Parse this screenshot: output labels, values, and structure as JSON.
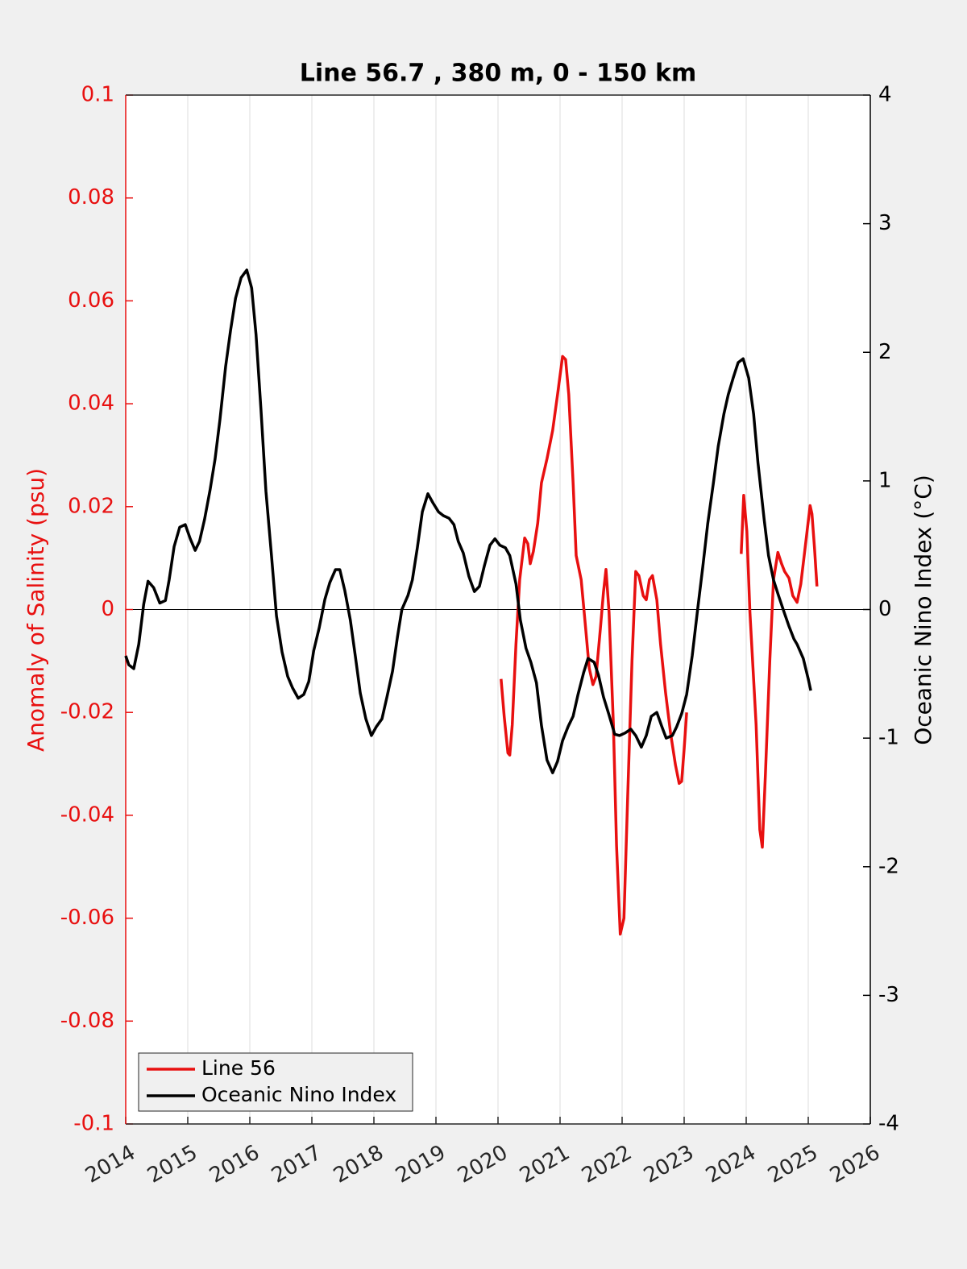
{
  "chart_data": {
    "type": "line",
    "title": "Line 56.7 , 380 m, 0 - 150 km",
    "y_label": "Anomaly of Salinity (psu)",
    "y2_label": "Oceanic Nino Index (°C)",
    "xlim": [
      2014,
      2026
    ],
    "xticks": [
      2014,
      2015,
      2016,
      2017,
      2018,
      2019,
      2020,
      2021,
      2022,
      2023,
      2024,
      2025,
      2026
    ],
    "ylim": [
      -0.1,
      0.1
    ],
    "yticks": [
      -0.1,
      -0.08,
      -0.06,
      -0.04,
      -0.02,
      0,
      0.02,
      0.04,
      0.06,
      0.08,
      0.1
    ],
    "y2lim": [
      -4,
      4
    ],
    "y2ticks": [
      -4,
      -3,
      -2,
      -1,
      0,
      1,
      2,
      3,
      4
    ],
    "grid": "x",
    "reference_line": 0,
    "legend": "lower left",
    "series": [
      {
        "name": "Line 56",
        "color": "#e81010",
        "axis": "y",
        "x": [
          2020.05,
          2020.1,
          2020.16,
          2020.19,
          2020.23,
          2020.29,
          2020.35,
          2020.43,
          2020.48,
          2020.52,
          2020.57,
          2020.64,
          2020.7,
          2020.79,
          2020.88,
          2020.96,
          2021.04,
          2021.09,
          2021.14,
          2021.21,
          2021.26,
          2021.34,
          2021.4,
          2021.47,
          2021.53,
          2021.58,
          2021.65,
          2021.7,
          2021.74,
          2021.79,
          2021.86,
          2021.91,
          2021.97,
          2022.03,
          2022.09,
          2022.16,
          2022.22,
          2022.27,
          2022.34,
          2022.39,
          2022.44,
          2022.49,
          2022.56,
          2022.62,
          2022.7,
          2022.78,
          2022.86,
          2022.92,
          2022.96,
          2023.0,
          2023.04,
          null,
          2023.92,
          2023.96,
          2024.01,
          2024.06,
          2024.16,
          2024.22,
          2024.26,
          2024.31,
          2024.38,
          2024.44,
          2024.51,
          2024.57,
          2024.62,
          2024.69,
          2024.75,
          2024.82,
          2024.88,
          2024.95,
          2025.03,
          2025.06,
          2025.1,
          2025.14
        ],
        "values": [
          -0.0135,
          -0.0208,
          -0.0279,
          -0.0283,
          -0.0224,
          -0.0067,
          0.0058,
          0.0139,
          0.0128,
          0.0089,
          0.0113,
          0.0168,
          0.0246,
          0.0293,
          0.0348,
          0.0418,
          0.0492,
          0.0486,
          0.0418,
          0.0246,
          0.0105,
          0.0058,
          -0.002,
          -0.0114,
          -0.0146,
          -0.013,
          -0.0036,
          0.0034,
          0.0078,
          -0.0005,
          -0.0224,
          -0.0459,
          -0.0631,
          -0.06,
          -0.0365,
          -0.0099,
          0.0074,
          0.0066,
          0.0027,
          0.0019,
          0.0058,
          0.0066,
          0.0019,
          -0.0067,
          -0.0161,
          -0.024,
          -0.0302,
          -0.0338,
          -0.0334,
          -0.0271,
          -0.02,
          null,
          0.0108,
          0.0222,
          0.0152,
          -0.0005,
          -0.0224,
          -0.0428,
          -0.0462,
          -0.0318,
          -0.0099,
          0.0058,
          0.0111,
          0.0089,
          0.0074,
          0.0061,
          0.0027,
          0.0014,
          0.005,
          0.0121,
          0.0202,
          0.0186,
          0.0121,
          0.0045
        ]
      },
      {
        "name": "Oceanic Nino Index",
        "color": "#000000",
        "axis": "y2",
        "x": [
          2014.0,
          2014.05,
          2014.13,
          2014.21,
          2014.29,
          2014.36,
          2014.45,
          2014.55,
          2014.64,
          2014.7,
          2014.78,
          2014.87,
          2014.96,
          2015.04,
          2015.12,
          2015.19,
          2015.27,
          2015.36,
          2015.44,
          2015.52,
          2015.61,
          2015.69,
          2015.77,
          2015.86,
          2015.95,
          2016.03,
          2016.1,
          2016.18,
          2016.26,
          2016.35,
          2016.43,
          2016.52,
          2016.61,
          2016.69,
          2016.78,
          2016.87,
          2016.95,
          2017.03,
          2017.12,
          2017.21,
          2017.29,
          2017.38,
          2017.45,
          2017.53,
          2017.62,
          2017.7,
          2017.78,
          2017.87,
          2017.96,
          2018.04,
          2018.13,
          2018.21,
          2018.3,
          2018.38,
          2018.45,
          2018.55,
          2018.62,
          2018.7,
          2018.78,
          2018.87,
          2018.95,
          2019.04,
          2019.12,
          2019.21,
          2019.29,
          2019.36,
          2019.44,
          2019.53,
          2019.62,
          2019.7,
          2019.78,
          2019.87,
          2019.95,
          2020.03,
          2020.12,
          2020.19,
          2020.29,
          2020.36,
          2020.45,
          2020.53,
          2020.62,
          2020.7,
          2020.79,
          2020.88,
          2020.96,
          2021.04,
          2021.13,
          2021.21,
          2021.29,
          2021.38,
          2021.45,
          2021.55,
          2021.62,
          2021.7,
          2021.79,
          2021.88,
          2021.96,
          2022.05,
          2022.14,
          2022.22,
          2022.31,
          2022.39,
          2022.47,
          2022.56,
          2022.64,
          2022.71,
          2022.81,
          2022.88,
          2022.96,
          2023.04,
          2023.13,
          2023.22,
          2023.3,
          2023.38,
          2023.47,
          2023.55,
          2023.64,
          2023.71,
          2023.79,
          2023.87,
          2023.95,
          2024.04,
          2024.12,
          2024.19,
          2024.29,
          2024.36,
          2024.44,
          2024.52,
          2024.61,
          2024.69,
          2024.77,
          2024.82,
          2024.92,
          2025.0,
          2025.04
        ],
        "values": [
          -0.36,
          -0.43,
          -0.46,
          -0.27,
          0.04,
          0.22,
          0.17,
          0.05,
          0.07,
          0.23,
          0.49,
          0.64,
          0.66,
          0.55,
          0.46,
          0.53,
          0.7,
          0.93,
          1.17,
          1.48,
          1.89,
          2.17,
          2.42,
          2.58,
          2.64,
          2.5,
          2.14,
          1.55,
          0.92,
          0.42,
          -0.05,
          -0.33,
          -0.52,
          -0.61,
          -0.69,
          -0.66,
          -0.56,
          -0.32,
          -0.14,
          0.08,
          0.21,
          0.31,
          0.31,
          0.15,
          -0.08,
          -0.36,
          -0.65,
          -0.85,
          -0.98,
          -0.91,
          -0.85,
          -0.68,
          -0.48,
          -0.21,
          0,
          0.11,
          0.23,
          0.48,
          0.76,
          0.9,
          0.83,
          0.76,
          0.73,
          0.71,
          0.66,
          0.53,
          0.44,
          0.26,
          0.14,
          0.18,
          0.34,
          0.5,
          0.55,
          0.5,
          0.48,
          0.42,
          0.2,
          -0.08,
          -0.3,
          -0.41,
          -0.57,
          -0.9,
          -1.17,
          -1.27,
          -1.18,
          -1.02,
          -0.91,
          -0.83,
          -0.66,
          -0.49,
          -0.38,
          -0.41,
          -0.51,
          -0.68,
          -0.82,
          -0.97,
          -0.98,
          -0.96,
          -0.93,
          -0.98,
          -1.07,
          -0.98,
          -0.83,
          -0.8,
          -0.91,
          -1,
          -0.98,
          -0.91,
          -0.81,
          -0.66,
          -0.36,
          0.01,
          0.33,
          0.67,
          0.98,
          1.27,
          1.52,
          1.67,
          1.8,
          1.92,
          1.95,
          1.8,
          1.52,
          1.14,
          0.7,
          0.42,
          0.23,
          0.11,
          -0.02,
          -0.13,
          -0.23,
          -0.27,
          -0.38,
          -0.54,
          -0.63
        ]
      }
    ]
  }
}
